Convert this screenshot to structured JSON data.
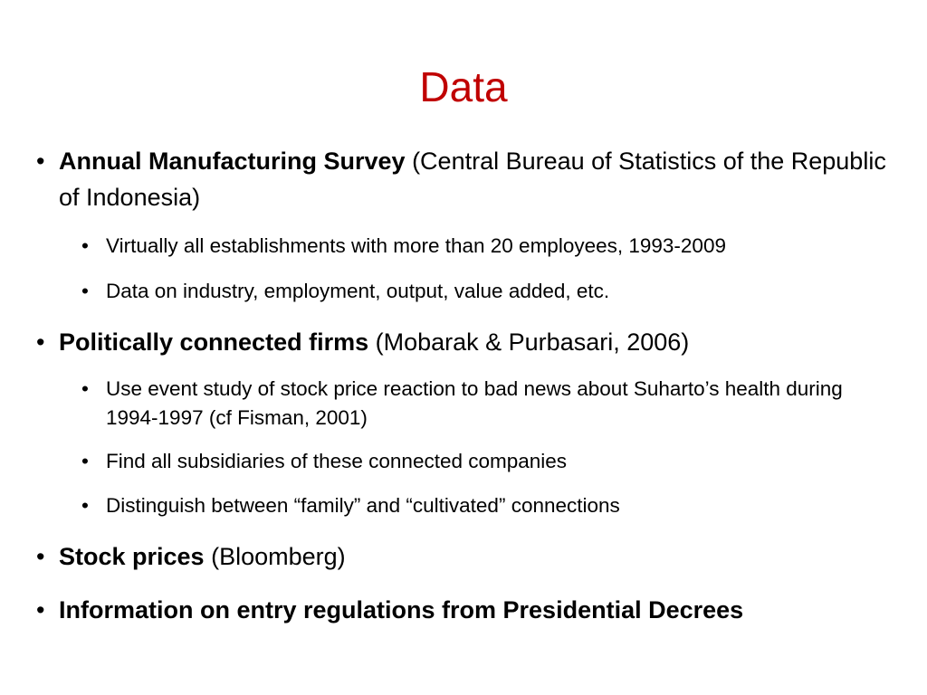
{
  "slide": {
    "title": "Data",
    "title_color": "#c00000",
    "bullet_glyph": "•",
    "items": [
      {
        "bold": "Annual Manufacturing Survey",
        "rest": " (Central Bureau of Statistics of the Republic of Indonesia)",
        "subitems": [
          "Virtually all establishments with more than 20 employees, 1993-2009",
          "Data on industry, employment, output, value added, etc."
        ]
      },
      {
        "bold": "Politically connected firms",
        "rest": " (Mobarak & Purbasari, 2006)",
        "subitems": [
          "Use event study of stock price reaction to bad news about Suharto’s health during 1994-1997 (cf Fisman, 2001)",
          "Find all subsidiaries of these connected companies",
          "Distinguish between “family” and “cultivated” connections"
        ]
      },
      {
        "bold": "Stock prices",
        "rest": " (Bloomberg)",
        "subitems": []
      },
      {
        "bold": "Information on entry regulations from Presidential Decrees",
        "rest": "",
        "subitems": []
      }
    ]
  }
}
